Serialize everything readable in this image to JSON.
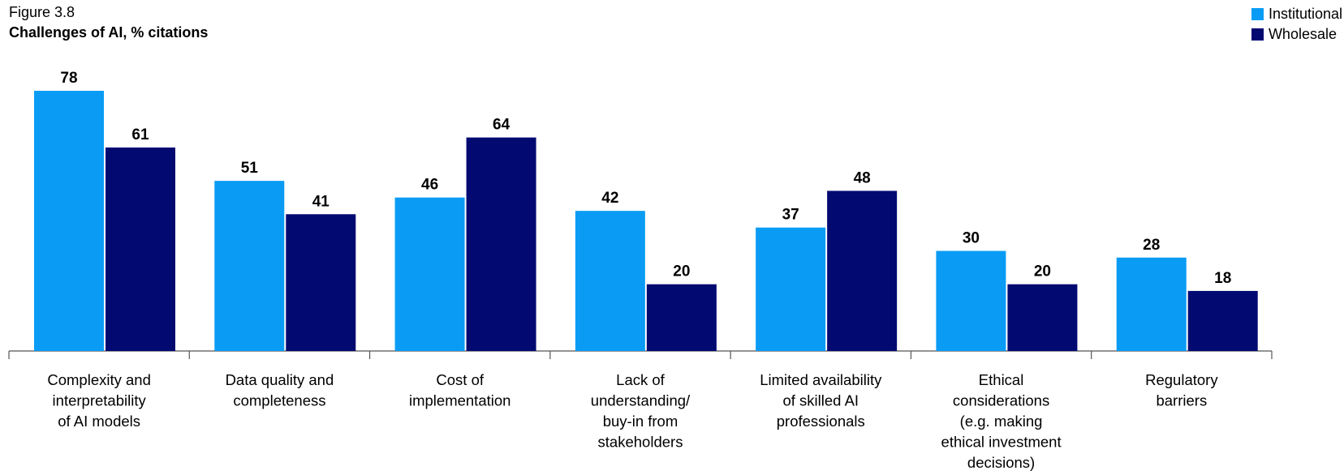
{
  "figure_label": "Figure 3.8",
  "colors": {
    "institutional": "#0a9cf5",
    "wholesale": "#020a72",
    "axis": "#555555"
  },
  "chart_data": {
    "type": "bar",
    "title": "Challenges of AI, % citations",
    "xlabel": "",
    "ylabel": "",
    "ylim": [
      0,
      78
    ],
    "grid": false,
    "legend_position": "top-right",
    "categories": [
      "Complexity and interpretability of AI models",
      "Data quality and completeness",
      "Cost of implementation",
      "Lack of understanding/ buy-in from stakeholders",
      "Limited availability of skilled AI professionals",
      "Ethical considerations (e.g. making ethical investment decisions)",
      "Regulatory barriers"
    ],
    "category_lines": [
      [
        "Complexity and",
        "interpretability",
        "of AI models"
      ],
      [
        "Data quality and",
        "completeness"
      ],
      [
        "Cost of",
        "implementation"
      ],
      [
        "Lack of",
        "understanding/",
        "buy-in from",
        "stakeholders"
      ],
      [
        "Limited availability",
        "of skilled AI",
        "professionals"
      ],
      [
        "Ethical",
        "considerations",
        "(e.g. making",
        "ethical investment",
        "decisions)"
      ],
      [
        "Regulatory",
        "barriers"
      ]
    ],
    "series": [
      {
        "name": "Institutional",
        "values": [
          78,
          51,
          46,
          42,
          37,
          30,
          28
        ]
      },
      {
        "name": "Wholesale",
        "values": [
          61,
          41,
          64,
          20,
          48,
          20,
          18
        ]
      }
    ]
  }
}
